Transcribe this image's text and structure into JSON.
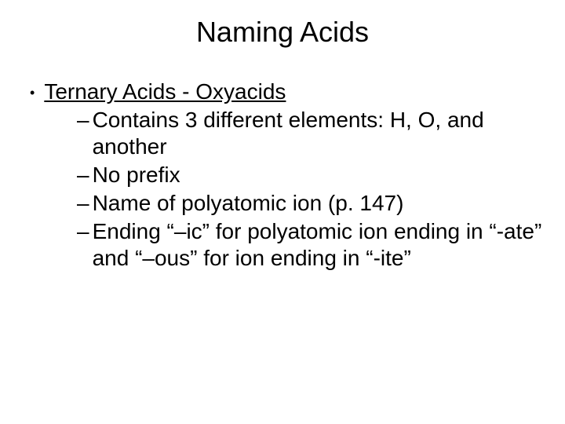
{
  "title": "Naming Acids",
  "main_bullet": "Ternary Acids - Oxyacids",
  "sub_items": [
    "Contains 3 different elements: H, O, and another",
    "No prefix",
    "Name of polyatomic ion (p. 147)",
    "Ending “–ic” for polyatomic ion ending in “-ate” and “–ous” for  ion ending in “-ite”"
  ],
  "colors": {
    "background": "#ffffff",
    "text": "#000000"
  },
  "fonts": {
    "title_size": 36,
    "body_size": 28
  }
}
